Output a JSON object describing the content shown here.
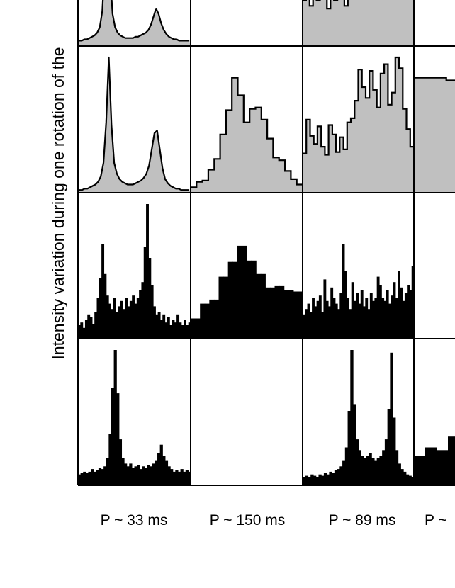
{
  "y_axis_label": "Intensity variation during one rotation of the",
  "columns": [
    {
      "label": "P ~ 33 ms"
    },
    {
      "label": "P ~ 150 ms"
    },
    {
      "label": "P ~ 89 ms"
    },
    {
      "label": "P ~"
    }
  ],
  "colors": {
    "gray_fill": "#c0c0c0",
    "ink": "#000000",
    "background": "#ffffff"
  },
  "chart_data": {
    "type": "histogram-grid",
    "rows": 4,
    "columns": 4,
    "panels": [
      {
        "row": 0,
        "col": 0,
        "style": "line-gray",
        "y": [
          0.04,
          0.04,
          0.05,
          0.05,
          0.06,
          0.07,
          0.08,
          0.1,
          0.14,
          0.26,
          0.62,
          1.0,
          0.55,
          0.24,
          0.14,
          0.1,
          0.08,
          0.07,
          0.06,
          0.06,
          0.06,
          0.06,
          0.07,
          0.07,
          0.08,
          0.09,
          0.1,
          0.12,
          0.16,
          0.22,
          0.28,
          0.24,
          0.17,
          0.12,
          0.09,
          0.07,
          0.06,
          0.05,
          0.05,
          0.04,
          0.04,
          0.04,
          0.04,
          0.04
        ]
      },
      {
        "row": 0,
        "col": 2,
        "style": "step-gray",
        "y": [
          0.34,
          0.42,
          0.3,
          0.46,
          0.34,
          0.52,
          0.44,
          0.28,
          0.4,
          0.34,
          0.56,
          0.44,
          0.3,
          0.38,
          0.5,
          0.62,
          0.74,
          1.0,
          0.8,
          0.6,
          0.68,
          0.94,
          0.82,
          0.6,
          0.96,
          0.72,
          0.58,
          0.64,
          0.5,
          0.54,
          0.46,
          0.42
        ]
      },
      {
        "row": 1,
        "col": 0,
        "style": "line-gray",
        "y": [
          0.02,
          0.02,
          0.03,
          0.03,
          0.04,
          0.05,
          0.06,
          0.08,
          0.12,
          0.22,
          0.52,
          1.0,
          0.5,
          0.22,
          0.14,
          0.1,
          0.08,
          0.07,
          0.06,
          0.06,
          0.06,
          0.07,
          0.08,
          0.09,
          0.11,
          0.14,
          0.2,
          0.32,
          0.44,
          0.46,
          0.32,
          0.18,
          0.1,
          0.07,
          0.05,
          0.04,
          0.03,
          0.03,
          0.02,
          0.02,
          0.02,
          0.02
        ]
      },
      {
        "row": 1,
        "col": 1,
        "style": "step-gray",
        "y": [
          0.04,
          0.08,
          0.09,
          0.17,
          0.25,
          0.43,
          0.61,
          0.85,
          0.72,
          0.52,
          0.62,
          0.63,
          0.54,
          0.4,
          0.26,
          0.24,
          0.16,
          0.1,
          0.06
        ]
      },
      {
        "row": 1,
        "col": 2,
        "style": "step-gray",
        "y": [
          0.29,
          0.54,
          0.42,
          0.36,
          0.49,
          0.34,
          0.28,
          0.5,
          0.43,
          0.3,
          0.41,
          0.32,
          0.52,
          0.55,
          0.68,
          0.91,
          0.78,
          0.7,
          0.9,
          0.76,
          0.63,
          0.88,
          0.95,
          0.65,
          0.74,
          1.0,
          0.92,
          0.62,
          0.47,
          0.34
        ]
      },
      {
        "row": 1,
        "col": 3,
        "style": "step-gray",
        "y": [
          0.85,
          0.85,
          0.83,
          0.83,
          0.95,
          0.95,
          0.47
        ]
      },
      {
        "row": 2,
        "col": 0,
        "style": "bar-black",
        "y": [
          0.1,
          0.12,
          0.08,
          0.14,
          0.18,
          0.16,
          0.11,
          0.2,
          0.3,
          0.45,
          0.7,
          0.48,
          0.32,
          0.26,
          0.22,
          0.3,
          0.2,
          0.24,
          0.28,
          0.22,
          0.3,
          0.24,
          0.28,
          0.32,
          0.26,
          0.3,
          0.36,
          0.42,
          0.68,
          1.0,
          0.6,
          0.4,
          0.24,
          0.18,
          0.2,
          0.14,
          0.18,
          0.12,
          0.16,
          0.1,
          0.14,
          0.12,
          0.18,
          0.12,
          0.1,
          0.14,
          0.1,
          0.12
        ]
      },
      {
        "row": 2,
        "col": 1,
        "style": "bar-black",
        "y": [
          0.15,
          0.15,
          0.26,
          0.26,
          0.29,
          0.29,
          0.46,
          0.46,
          0.57,
          0.57,
          0.69,
          0.69,
          0.58,
          0.58,
          0.48,
          0.48,
          0.38,
          0.38,
          0.39,
          0.39,
          0.36,
          0.36,
          0.35,
          0.35
        ]
      },
      {
        "row": 2,
        "col": 2,
        "style": "bar-black",
        "y": [
          0.18,
          0.22,
          0.26,
          0.2,
          0.3,
          0.24,
          0.28,
          0.32,
          0.2,
          0.44,
          0.28,
          0.24,
          0.38,
          0.3,
          0.26,
          0.22,
          0.34,
          0.7,
          0.5,
          0.3,
          0.22,
          0.42,
          0.28,
          0.34,
          0.26,
          0.36,
          0.24,
          0.3,
          0.22,
          0.34,
          0.28,
          0.3,
          0.46,
          0.4,
          0.3,
          0.28,
          0.36,
          0.26,
          0.32,
          0.42,
          0.3,
          0.5,
          0.38,
          0.28,
          0.34,
          0.4,
          0.36,
          0.54
        ]
      },
      {
        "row": 3,
        "col": 0,
        "style": "bar-black",
        "y": [
          0.08,
          0.09,
          0.1,
          0.09,
          0.1,
          0.12,
          0.1,
          0.11,
          0.13,
          0.12,
          0.14,
          0.2,
          0.38,
          0.72,
          1.0,
          0.68,
          0.34,
          0.2,
          0.16,
          0.14,
          0.16,
          0.13,
          0.14,
          0.15,
          0.12,
          0.14,
          0.13,
          0.15,
          0.14,
          0.16,
          0.18,
          0.24,
          0.3,
          0.22,
          0.18,
          0.14,
          0.12,
          0.1,
          0.11,
          0.1,
          0.12,
          0.1,
          0.11,
          0.1
        ]
      },
      {
        "row": 3,
        "col": 2,
        "style": "bar-black",
        "y": [
          0.06,
          0.07,
          0.06,
          0.08,
          0.07,
          0.06,
          0.08,
          0.07,
          0.09,
          0.08,
          0.1,
          0.09,
          0.11,
          0.12,
          0.14,
          0.18,
          0.28,
          0.55,
          1.0,
          0.6,
          0.34,
          0.26,
          0.22,
          0.2,
          0.22,
          0.24,
          0.2,
          0.18,
          0.2,
          0.22,
          0.26,
          0.34,
          0.56,
          0.98,
          0.5,
          0.26,
          0.16,
          0.12,
          0.1,
          0.08,
          0.07,
          0.06
        ]
      },
      {
        "row": 3,
        "col": 3,
        "style": "bar-black",
        "y": [
          0.22,
          0.28,
          0.26,
          0.36,
          0.3,
          0.5,
          0.38,
          0.55,
          0.62,
          0.82
        ]
      }
    ]
  }
}
